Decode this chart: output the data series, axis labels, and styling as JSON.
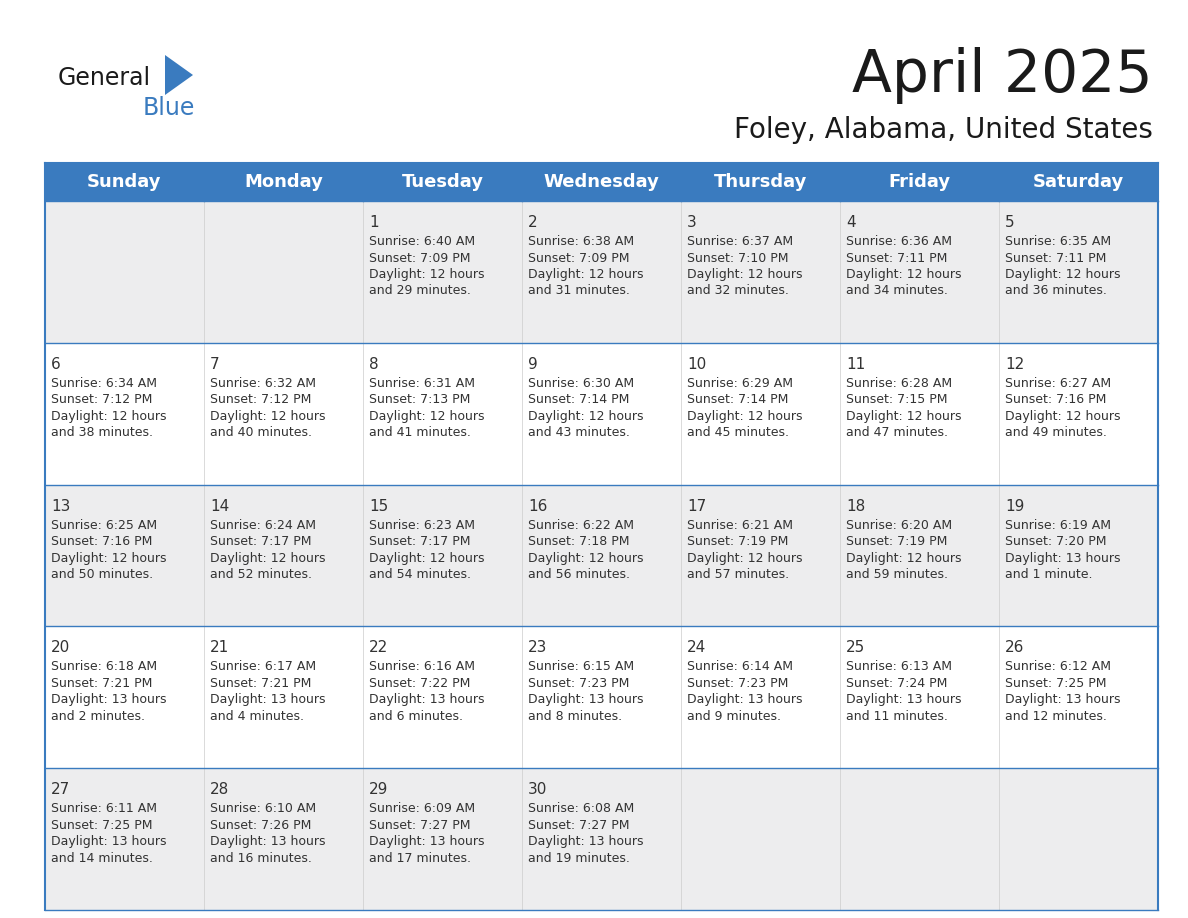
{
  "title": "April 2025",
  "subtitle": "Foley, Alabama, United States",
  "header_bg_color": "#3a7bbf",
  "header_text_color": "#ffffff",
  "cell_bg_light": "#ededee",
  "cell_bg_white": "#ffffff",
  "day_headers": [
    "Sunday",
    "Monday",
    "Tuesday",
    "Wednesday",
    "Thursday",
    "Friday",
    "Saturday"
  ],
  "title_fontsize": 42,
  "subtitle_fontsize": 20,
  "header_fontsize": 13,
  "cell_day_fontsize": 11,
  "cell_text_fontsize": 9,
  "grid_color": "#3a7bbf",
  "text_color": "#333333",
  "logo_general_color": "#1a1a1a",
  "logo_blue_color": "#3a7bbf",
  "logo_triangle_color": "#3a7bbf",
  "calendar": [
    [
      {
        "day": "",
        "sunrise": "",
        "sunset": "",
        "daylight": ""
      },
      {
        "day": "",
        "sunrise": "",
        "sunset": "",
        "daylight": ""
      },
      {
        "day": "1",
        "sunrise": "Sunrise: 6:40 AM",
        "sunset": "Sunset: 7:09 PM",
        "daylight": "Daylight: 12 hours\nand 29 minutes."
      },
      {
        "day": "2",
        "sunrise": "Sunrise: 6:38 AM",
        "sunset": "Sunset: 7:09 PM",
        "daylight": "Daylight: 12 hours\nand 31 minutes."
      },
      {
        "day": "3",
        "sunrise": "Sunrise: 6:37 AM",
        "sunset": "Sunset: 7:10 PM",
        "daylight": "Daylight: 12 hours\nand 32 minutes."
      },
      {
        "day": "4",
        "sunrise": "Sunrise: 6:36 AM",
        "sunset": "Sunset: 7:11 PM",
        "daylight": "Daylight: 12 hours\nand 34 minutes."
      },
      {
        "day": "5",
        "sunrise": "Sunrise: 6:35 AM",
        "sunset": "Sunset: 7:11 PM",
        "daylight": "Daylight: 12 hours\nand 36 minutes."
      }
    ],
    [
      {
        "day": "6",
        "sunrise": "Sunrise: 6:34 AM",
        "sunset": "Sunset: 7:12 PM",
        "daylight": "Daylight: 12 hours\nand 38 minutes."
      },
      {
        "day": "7",
        "sunrise": "Sunrise: 6:32 AM",
        "sunset": "Sunset: 7:12 PM",
        "daylight": "Daylight: 12 hours\nand 40 minutes."
      },
      {
        "day": "8",
        "sunrise": "Sunrise: 6:31 AM",
        "sunset": "Sunset: 7:13 PM",
        "daylight": "Daylight: 12 hours\nand 41 minutes."
      },
      {
        "day": "9",
        "sunrise": "Sunrise: 6:30 AM",
        "sunset": "Sunset: 7:14 PM",
        "daylight": "Daylight: 12 hours\nand 43 minutes."
      },
      {
        "day": "10",
        "sunrise": "Sunrise: 6:29 AM",
        "sunset": "Sunset: 7:14 PM",
        "daylight": "Daylight: 12 hours\nand 45 minutes."
      },
      {
        "day": "11",
        "sunrise": "Sunrise: 6:28 AM",
        "sunset": "Sunset: 7:15 PM",
        "daylight": "Daylight: 12 hours\nand 47 minutes."
      },
      {
        "day": "12",
        "sunrise": "Sunrise: 6:27 AM",
        "sunset": "Sunset: 7:16 PM",
        "daylight": "Daylight: 12 hours\nand 49 minutes."
      }
    ],
    [
      {
        "day": "13",
        "sunrise": "Sunrise: 6:25 AM",
        "sunset": "Sunset: 7:16 PM",
        "daylight": "Daylight: 12 hours\nand 50 minutes."
      },
      {
        "day": "14",
        "sunrise": "Sunrise: 6:24 AM",
        "sunset": "Sunset: 7:17 PM",
        "daylight": "Daylight: 12 hours\nand 52 minutes."
      },
      {
        "day": "15",
        "sunrise": "Sunrise: 6:23 AM",
        "sunset": "Sunset: 7:17 PM",
        "daylight": "Daylight: 12 hours\nand 54 minutes."
      },
      {
        "day": "16",
        "sunrise": "Sunrise: 6:22 AM",
        "sunset": "Sunset: 7:18 PM",
        "daylight": "Daylight: 12 hours\nand 56 minutes."
      },
      {
        "day": "17",
        "sunrise": "Sunrise: 6:21 AM",
        "sunset": "Sunset: 7:19 PM",
        "daylight": "Daylight: 12 hours\nand 57 minutes."
      },
      {
        "day": "18",
        "sunrise": "Sunrise: 6:20 AM",
        "sunset": "Sunset: 7:19 PM",
        "daylight": "Daylight: 12 hours\nand 59 minutes."
      },
      {
        "day": "19",
        "sunrise": "Sunrise: 6:19 AM",
        "sunset": "Sunset: 7:20 PM",
        "daylight": "Daylight: 13 hours\nand 1 minute."
      }
    ],
    [
      {
        "day": "20",
        "sunrise": "Sunrise: 6:18 AM",
        "sunset": "Sunset: 7:21 PM",
        "daylight": "Daylight: 13 hours\nand 2 minutes."
      },
      {
        "day": "21",
        "sunrise": "Sunrise: 6:17 AM",
        "sunset": "Sunset: 7:21 PM",
        "daylight": "Daylight: 13 hours\nand 4 minutes."
      },
      {
        "day": "22",
        "sunrise": "Sunrise: 6:16 AM",
        "sunset": "Sunset: 7:22 PM",
        "daylight": "Daylight: 13 hours\nand 6 minutes."
      },
      {
        "day": "23",
        "sunrise": "Sunrise: 6:15 AM",
        "sunset": "Sunset: 7:23 PM",
        "daylight": "Daylight: 13 hours\nand 8 minutes."
      },
      {
        "day": "24",
        "sunrise": "Sunrise: 6:14 AM",
        "sunset": "Sunset: 7:23 PM",
        "daylight": "Daylight: 13 hours\nand 9 minutes."
      },
      {
        "day": "25",
        "sunrise": "Sunrise: 6:13 AM",
        "sunset": "Sunset: 7:24 PM",
        "daylight": "Daylight: 13 hours\nand 11 minutes."
      },
      {
        "day": "26",
        "sunrise": "Sunrise: 6:12 AM",
        "sunset": "Sunset: 7:25 PM",
        "daylight": "Daylight: 13 hours\nand 12 minutes."
      }
    ],
    [
      {
        "day": "27",
        "sunrise": "Sunrise: 6:11 AM",
        "sunset": "Sunset: 7:25 PM",
        "daylight": "Daylight: 13 hours\nand 14 minutes."
      },
      {
        "day": "28",
        "sunrise": "Sunrise: 6:10 AM",
        "sunset": "Sunset: 7:26 PM",
        "daylight": "Daylight: 13 hours\nand 16 minutes."
      },
      {
        "day": "29",
        "sunrise": "Sunrise: 6:09 AM",
        "sunset": "Sunset: 7:27 PM",
        "daylight": "Daylight: 13 hours\nand 17 minutes."
      },
      {
        "day": "30",
        "sunrise": "Sunrise: 6:08 AM",
        "sunset": "Sunset: 7:27 PM",
        "daylight": "Daylight: 13 hours\nand 19 minutes."
      },
      {
        "day": "",
        "sunrise": "",
        "sunset": "",
        "daylight": ""
      },
      {
        "day": "",
        "sunrise": "",
        "sunset": "",
        "daylight": ""
      },
      {
        "day": "",
        "sunrise": "",
        "sunset": "",
        "daylight": ""
      }
    ]
  ]
}
